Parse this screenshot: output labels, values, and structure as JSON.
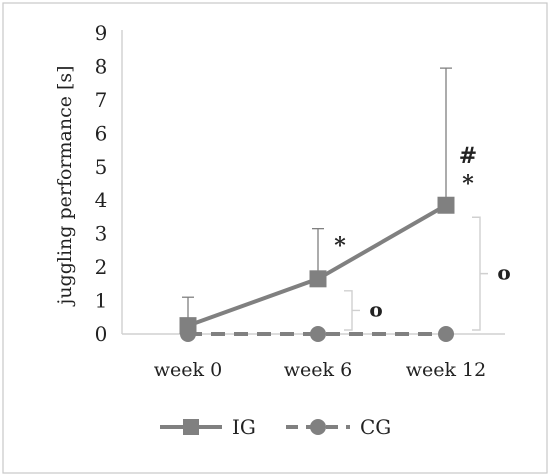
{
  "chart_data": {
    "type": "line",
    "categories": [
      "week 0",
      "week 6",
      "week 12"
    ],
    "ylabel": "juggling performance [s]",
    "xlabel": "",
    "ylim": [
      0,
      9
    ],
    "yticks": [
      0,
      1,
      2,
      3,
      4,
      5,
      6,
      7,
      8,
      9
    ],
    "grid": false,
    "legend_position": "bottom",
    "series": [
      {
        "name": "IG",
        "values": [
          0.25,
          1.65,
          3.85
        ],
        "error_upper": [
          0.85,
          1.5,
          4.1
        ],
        "marker": "square",
        "line": "solid",
        "color": "#808080"
      },
      {
        "name": "CG",
        "values": [
          0,
          0,
          0
        ],
        "marker": "circle",
        "line": "dashed",
        "color": "#808080"
      }
    ],
    "annotations": [
      {
        "category": "week 6",
        "text": "*",
        "series": "IG"
      },
      {
        "category": "week 12",
        "text": "*",
        "series": "IG"
      },
      {
        "category": "week 12",
        "text": "#",
        "series": "IG"
      },
      {
        "category": "week 6",
        "text": "o",
        "kind": "bracket"
      },
      {
        "category": "week 12",
        "text": "o",
        "kind": "bracket"
      }
    ]
  },
  "colors": {
    "axis": "#d0d0d0",
    "frame": "#c8c8c8",
    "series": "#808080",
    "text": "#222222"
  }
}
